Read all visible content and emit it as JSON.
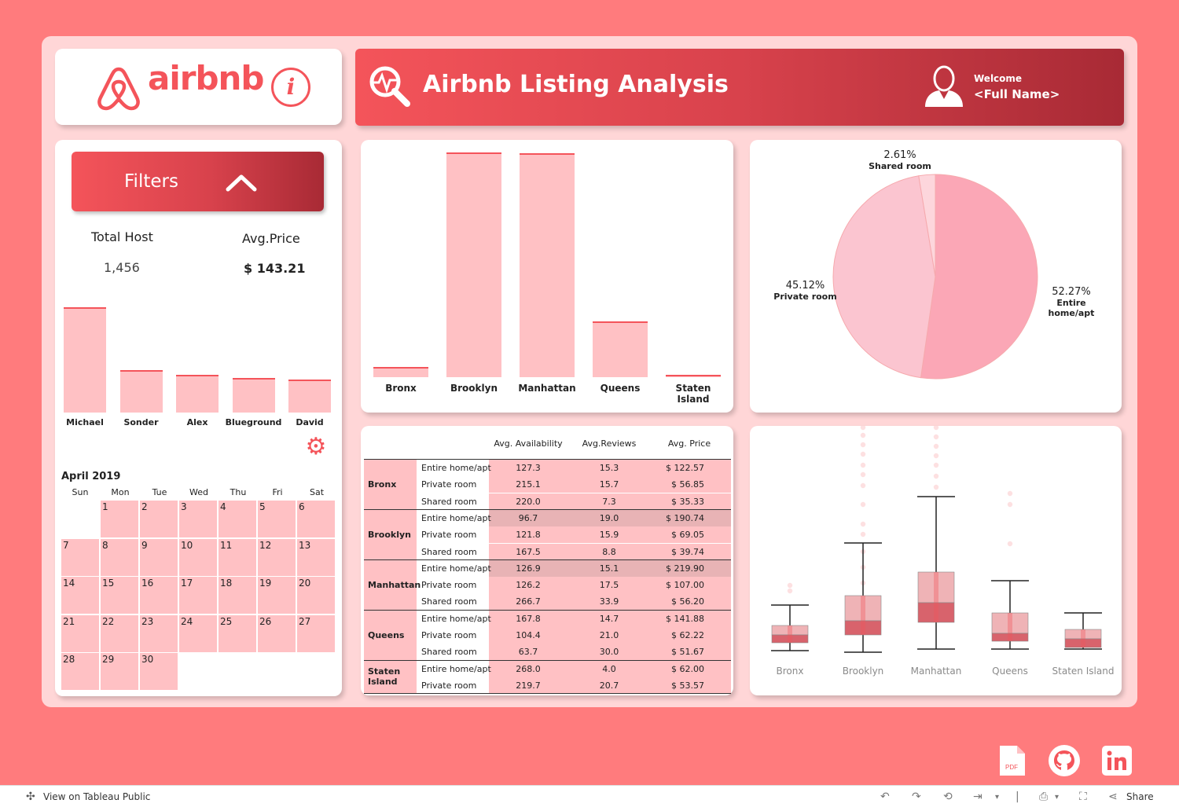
{
  "header": {
    "brand": "airbnb",
    "title": "Airbnb Listing Analysis",
    "welcome": "Welcome",
    "full_name": "<Full Name>"
  },
  "colors": {
    "accent": "#f4545a",
    "bar": "#ffc1c4",
    "dark": "#a82a35",
    "page_bg": "#ff7b7d"
  },
  "filters": {
    "label": "Filters"
  },
  "kpis": {
    "total_host_label": "Total Host",
    "total_host_value": "1,456",
    "avg_price_label": "Avg.Price",
    "avg_price_value": "$ 143.21"
  },
  "host_chart": {
    "type": "bar",
    "categories": [
      "Michael",
      "Sonder",
      "Alex",
      "Blueground",
      "David"
    ],
    "values": [
      100,
      40,
      36,
      33,
      31
    ]
  },
  "calendar": {
    "title": "April 2019",
    "weekdays": [
      "Sun",
      "Mon",
      "Tue",
      "Wed",
      "Thu",
      "Fri",
      "Sat"
    ],
    "first_weekday": 1,
    "days": 30
  },
  "chart_data": [
    {
      "type": "bar",
      "title": "",
      "categories": [
        "Bronx",
        "Brooklyn",
        "Manhattan",
        "Queens",
        "Staten Island"
      ],
      "values": [
        4.5,
        100,
        99.5,
        25,
        1.2
      ],
      "ylim": [
        0,
        100
      ]
    },
    {
      "type": "pie",
      "labels": [
        "Entire home/apt",
        "Private room",
        "Shared room"
      ],
      "values": [
        52.27,
        45.12,
        2.61
      ],
      "display": [
        "52.27%",
        "45.12%",
        "2.61%"
      ]
    },
    {
      "type": "box",
      "categories": [
        "Bronx",
        "Brooklyn",
        "Manhattan",
        "Queens",
        "Staten Island"
      ]
    }
  ],
  "table": {
    "headers": [
      "Avg. Availability",
      "Avg.Reviews",
      "Avg. Price"
    ],
    "groups": [
      {
        "borough": "Bronx",
        "rows": [
          {
            "type": "Entire home/apt",
            "avail": "127.3",
            "reviews": "15.3",
            "price": "$ 122.57"
          },
          {
            "type": "Private room",
            "avail": "215.1",
            "reviews": "15.7",
            "price": "$ 56.85"
          },
          {
            "type": "Shared room",
            "avail": "220.0",
            "reviews": "7.3",
            "price": "$ 35.33"
          }
        ]
      },
      {
        "borough": "Brooklyn",
        "rows": [
          {
            "type": "Entire home/apt",
            "avail": "96.7",
            "reviews": "19.0",
            "price": "$ 190.74"
          },
          {
            "type": "Private room",
            "avail": "121.8",
            "reviews": "15.9",
            "price": "$ 69.05"
          },
          {
            "type": "Shared room",
            "avail": "167.5",
            "reviews": "8.8",
            "price": "$ 39.74"
          }
        ]
      },
      {
        "borough": "Manhattan",
        "rows": [
          {
            "type": "Entire home/apt",
            "avail": "126.9",
            "reviews": "15.1",
            "price": "$ 219.90"
          },
          {
            "type": "Private room",
            "avail": "126.2",
            "reviews": "17.5",
            "price": "$ 107.00"
          },
          {
            "type": "Shared room",
            "avail": "266.7",
            "reviews": "33.9",
            "price": "$ 56.20"
          }
        ]
      },
      {
        "borough": "Queens",
        "rows": [
          {
            "type": "Entire home/apt",
            "avail": "167.8",
            "reviews": "14.7",
            "price": "$ 141.88"
          },
          {
            "type": "Private room",
            "avail": "104.4",
            "reviews": "21.0",
            "price": "$ 62.22"
          },
          {
            "type": "Shared room",
            "avail": "63.7",
            "reviews": "30.0",
            "price": "$ 51.67"
          }
        ]
      },
      {
        "borough": "Staten Island",
        "rows": [
          {
            "type": "Entire home/apt",
            "avail": "268.0",
            "reviews": "4.0",
            "price": "$ 62.00"
          },
          {
            "type": "Private room",
            "avail": "219.7",
            "reviews": "20.7",
            "price": "$ 53.57"
          }
        ]
      }
    ]
  },
  "footer": {
    "view_on": "View on Tableau Public",
    "share": "Share",
    "pdf": "PDF"
  }
}
